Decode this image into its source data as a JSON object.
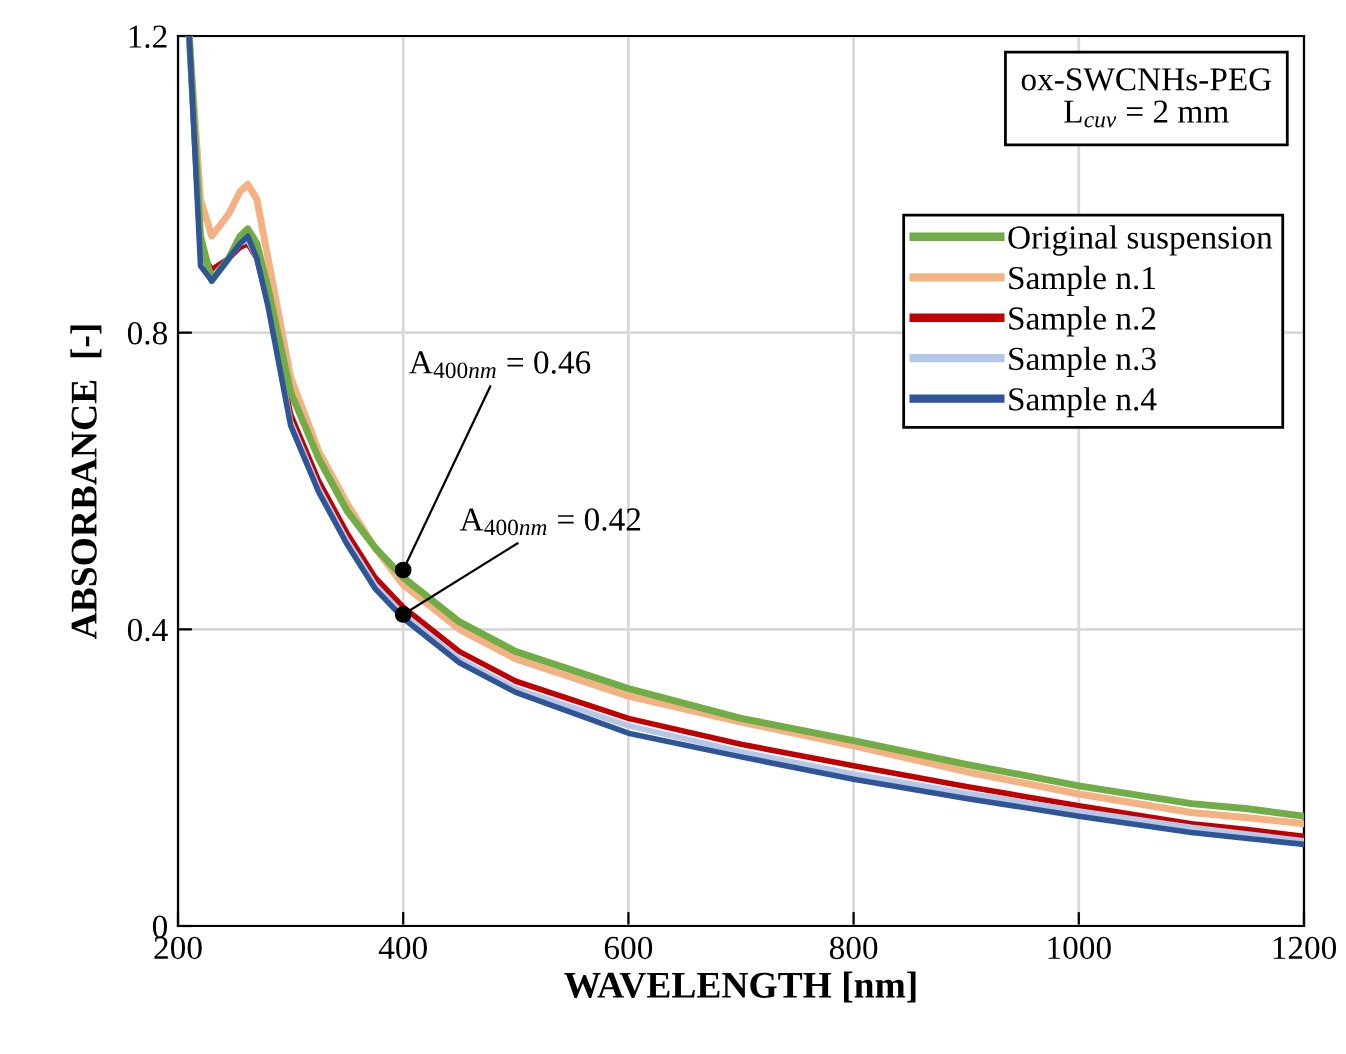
{
  "chart_data": {
    "type": "line",
    "xlabel": "WAVELENGTH [nm]",
    "ylabel": "ABSORBANCE  [-]",
    "x": [
      210,
      220,
      230,
      245,
      255,
      262,
      270,
      280,
      300,
      325,
      350,
      375,
      400,
      450,
      500,
      600,
      700,
      800,
      900,
      1000,
      1100,
      1150,
      1200
    ],
    "series": [
      {
        "name": "Original suspension",
        "color": "#70ad47",
        "values": [
          1.2,
          0.93,
          0.87,
          0.9,
          0.93,
          0.94,
          0.92,
          0.86,
          0.72,
          0.63,
          0.56,
          0.51,
          0.47,
          0.41,
          0.37,
          0.32,
          0.28,
          0.25,
          0.218,
          0.189,
          0.165,
          0.158,
          0.148
        ]
      },
      {
        "name": "Sample n.1",
        "color": "#f4b183",
        "values": [
          1.2,
          0.98,
          0.93,
          0.96,
          0.99,
          1.0,
          0.98,
          0.9,
          0.74,
          0.64,
          0.57,
          0.51,
          0.46,
          0.4,
          0.36,
          0.31,
          0.275,
          0.243,
          0.208,
          0.178,
          0.153,
          0.146,
          0.138
        ]
      },
      {
        "name": "Sample n.2",
        "color": "#c00000",
        "values": [
          1.2,
          0.91,
          0.885,
          0.9,
          0.915,
          0.92,
          0.9,
          0.84,
          0.69,
          0.6,
          0.53,
          0.47,
          0.43,
          0.37,
          0.33,
          0.28,
          0.245,
          0.216,
          0.188,
          0.162,
          0.138,
          0.13,
          0.121
        ]
      },
      {
        "name": "Sample n.3",
        "color": "#b4c7e7",
        "values": [
          1.2,
          0.9,
          0.875,
          0.9,
          0.92,
          0.925,
          0.9,
          0.84,
          0.68,
          0.59,
          0.52,
          0.46,
          0.42,
          0.36,
          0.32,
          0.27,
          0.235,
          0.205,
          0.179,
          0.155,
          0.133,
          0.124,
          0.115
        ]
      },
      {
        "name": "Sample n.4",
        "color": "#2f5597",
        "values": [
          1.2,
          0.89,
          0.87,
          0.9,
          0.92,
          0.93,
          0.9,
          0.835,
          0.675,
          0.585,
          0.515,
          0.455,
          0.415,
          0.355,
          0.315,
          0.26,
          0.228,
          0.198,
          0.172,
          0.148,
          0.126,
          0.118,
          0.11
        ]
      }
    ],
    "xlim": [
      200,
      1200
    ],
    "xticks": [
      200,
      400,
      600,
      800,
      1000,
      1200
    ],
    "ylim": [
      0,
      1.2
    ],
    "yticks": [
      {
        "value": 0,
        "label": "0"
      },
      {
        "value": 0.4,
        "label": "0.4"
      },
      {
        "value": 0.8,
        "label": "0.8"
      },
      {
        "value": 1.2,
        "label": "1.2"
      }
    ],
    "grid": true,
    "legend": "top right",
    "marker": "none",
    "line_style": "solid",
    "annotations": [
      {
        "text": "A$_{400nm}$ = 0.46",
        "x": 400,
        "y": 0.48
      },
      {
        "text": "A$_{400nm}$ = 0.42",
        "x": 400,
        "y": 0.42
      },
      "ox-SWCNHs-PEG\nL$_{cuv}$ = 2 mm"
    ]
  }
}
